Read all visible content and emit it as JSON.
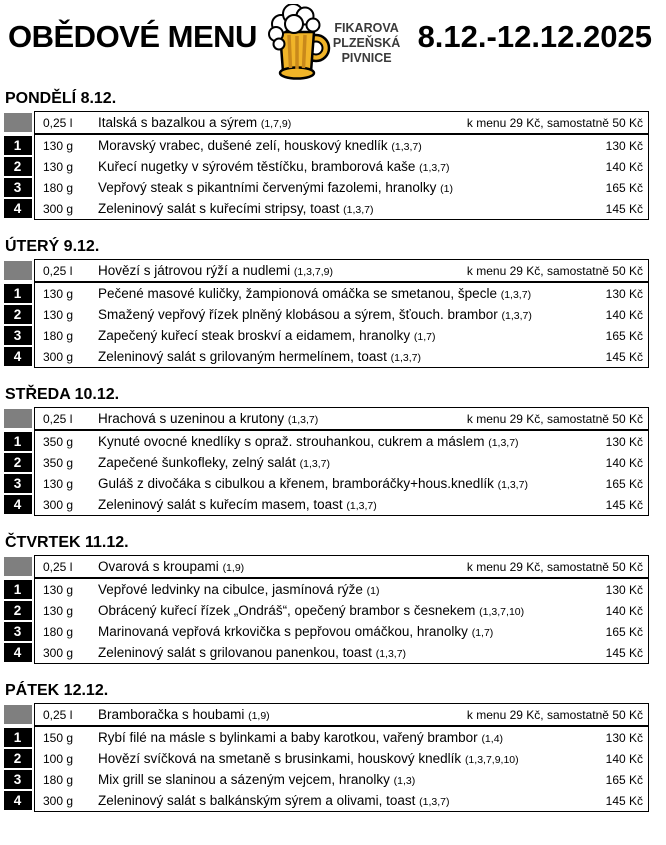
{
  "header": {
    "title": "OBĚDOVÉ MENU",
    "logo": {
      "icon": "beer-mug-icon",
      "line1": "FIKAROVA",
      "line2": "PLZEŇSKÁ",
      "line3": "PIVNICE"
    },
    "date_range": "8.12.-12.12.2025"
  },
  "colors": {
    "number_box": "#000000",
    "soup_box": "#7f7f7f",
    "mug_gold": "#F0B428",
    "mug_shade": "#C9891B",
    "foam": "#ffffff"
  },
  "days": [
    {
      "heading": "PONDĚLÍ 8.12.",
      "soup": {
        "qty": "0,25 l",
        "name": "Italská s bazalkou a sýrem",
        "allergens": "(1,7,9)",
        "price": "k menu 29 Kč, samostatně 50 Kč"
      },
      "items": [
        {
          "num": "1",
          "qty": "130 g",
          "name": "Moravský vrabec, dušené zelí, houskový knedlík",
          "allergens": "(1,3,7)",
          "price": "130 Kč"
        },
        {
          "num": "2",
          "qty": "130 g",
          "name": "Kuřecí nugetky v sýrovém těstíčku, bramborová kaše",
          "allergens": "(1,3,7)",
          "price": "140 Kč"
        },
        {
          "num": "3",
          "qty": "180 g",
          "name": "Vepřový steak s pikantními červenými fazolemi, hranolky",
          "allergens": "(1)",
          "price": "165 Kč"
        },
        {
          "num": "4",
          "qty": "300 g",
          "name": "Zeleninový salát s kuřecími stripsy, toast",
          "allergens": "(1,3,7)",
          "price": "145 Kč"
        }
      ]
    },
    {
      "heading": "ÚTERÝ 9.12.",
      "soup": {
        "qty": "0,25 l",
        "name": "Hovězí s játrovou rýží a nudlemi",
        "allergens": "(1,3,7,9)",
        "price": "k menu 29 Kč, samostatně 50 Kč"
      },
      "items": [
        {
          "num": "1",
          "qty": "130 g",
          "name": "Pečené masové kuličky, žampionová omáčka se smetanou, špecle",
          "allergens": "(1,3,7)",
          "price": "130 Kč"
        },
        {
          "num": "2",
          "qty": "130 g",
          "name": "Smažený vepřový řízek plněný klobásou a sýrem, šťouch. brambor",
          "allergens": "(1,3,7)",
          "price": "140 Kč"
        },
        {
          "num": "3",
          "qty": "180 g",
          "name": "Zapečený kuřecí steak broskví a eidamem, hranolky",
          "allergens": "(1,7)",
          "price": "165 Kč"
        },
        {
          "num": "4",
          "qty": "300 g",
          "name": "Zeleninový salát s grilovaným hermelínem, toast",
          "allergens": "(1,3,7)",
          "price": "145 Kč"
        }
      ]
    },
    {
      "heading": "STŘEDA 10.12.",
      "soup": {
        "qty": "0,25 l",
        "name": "Hrachová s uzeninou a krutony",
        "allergens": "(1,3,7)",
        "price": "k menu 29 Kč, samostatně 50 Kč"
      },
      "items": [
        {
          "num": "1",
          "qty": "350 g",
          "name": "Kynuté ovocné knedlíky s opraž. strouhankou, cukrem a máslem",
          "allergens": "(1,3,7)",
          "price": "130 Kč"
        },
        {
          "num": "2",
          "qty": "350 g",
          "name": "Zapečené šunkofleky, zelný salát",
          "allergens": "(1,3,7)",
          "price": "140 Kč"
        },
        {
          "num": "3",
          "qty": "130 g",
          "name": "Guláš z divočáka s cibulkou a křenem, bramboráčky+hous.knedlík",
          "allergens": "(1,3,7)",
          "price": "165 Kč"
        },
        {
          "num": "4",
          "qty": "300 g",
          "name": "Zeleninový salát s kuřecím masem, toast",
          "allergens": "(1,3,7)",
          "price": "145 Kč"
        }
      ]
    },
    {
      "heading": "ČTVRTEK 11.12.",
      "soup": {
        "qty": "0,25 l",
        "name": "Ovarová s kroupami",
        "allergens": "(1,9)",
        "price": "k menu 29 Kč, samostatně 50 Kč"
      },
      "items": [
        {
          "num": "1",
          "qty": "130 g",
          "name": "Vepřové ledvinky na cibulce, jasmínová rýže",
          "allergens": "(1)",
          "price": "130 Kč"
        },
        {
          "num": "2",
          "qty": "130 g",
          "name": "Obrácený kuřecí řízek „Ondráš“, opečený brambor s česnekem",
          "allergens": "(1,3,7,10)",
          "price": "140 Kč"
        },
        {
          "num": "3",
          "qty": "180 g",
          "name": "Marinovaná vepřová krkovička s pepřovou omáčkou, hranolky",
          "allergens": "(1,7)",
          "price": "165 Kč"
        },
        {
          "num": "4",
          "qty": "300 g",
          "name": "Zeleninový salát s grilovanou panenkou, toast",
          "allergens": "(1,3,7)",
          "price": "145 Kč"
        }
      ]
    },
    {
      "heading": "PÁTEK 12.12.",
      "soup": {
        "qty": "0,25 l",
        "name": "Bramboračka s houbami",
        "allergens": "(1,9)",
        "price": "k menu 29 Kč, samostatně 50 Kč"
      },
      "items": [
        {
          "num": "1",
          "qty": "150 g",
          "name": "Rybí filé na másle s bylinkami a baby karotkou, vařený brambor",
          "allergens": "(1,4)",
          "price": "130 Kč"
        },
        {
          "num": "2",
          "qty": "100 g",
          "name": "Hovězí svíčková na smetaně s brusinkami, houskový knedlík",
          "allergens": "(1,3,7,9,10)",
          "price": "140 Kč"
        },
        {
          "num": "3",
          "qty": "180 g",
          "name": "Mix grill se slaninou a sázeným vejcem, hranolky",
          "allergens": "(1,3)",
          "price": "165 Kč"
        },
        {
          "num": "4",
          "qty": "300 g",
          "name": "Zeleninový salát s balkánským sýrem a olivami, toast",
          "allergens": "(1,3,7)",
          "price": "145 Kč"
        }
      ]
    }
  ]
}
